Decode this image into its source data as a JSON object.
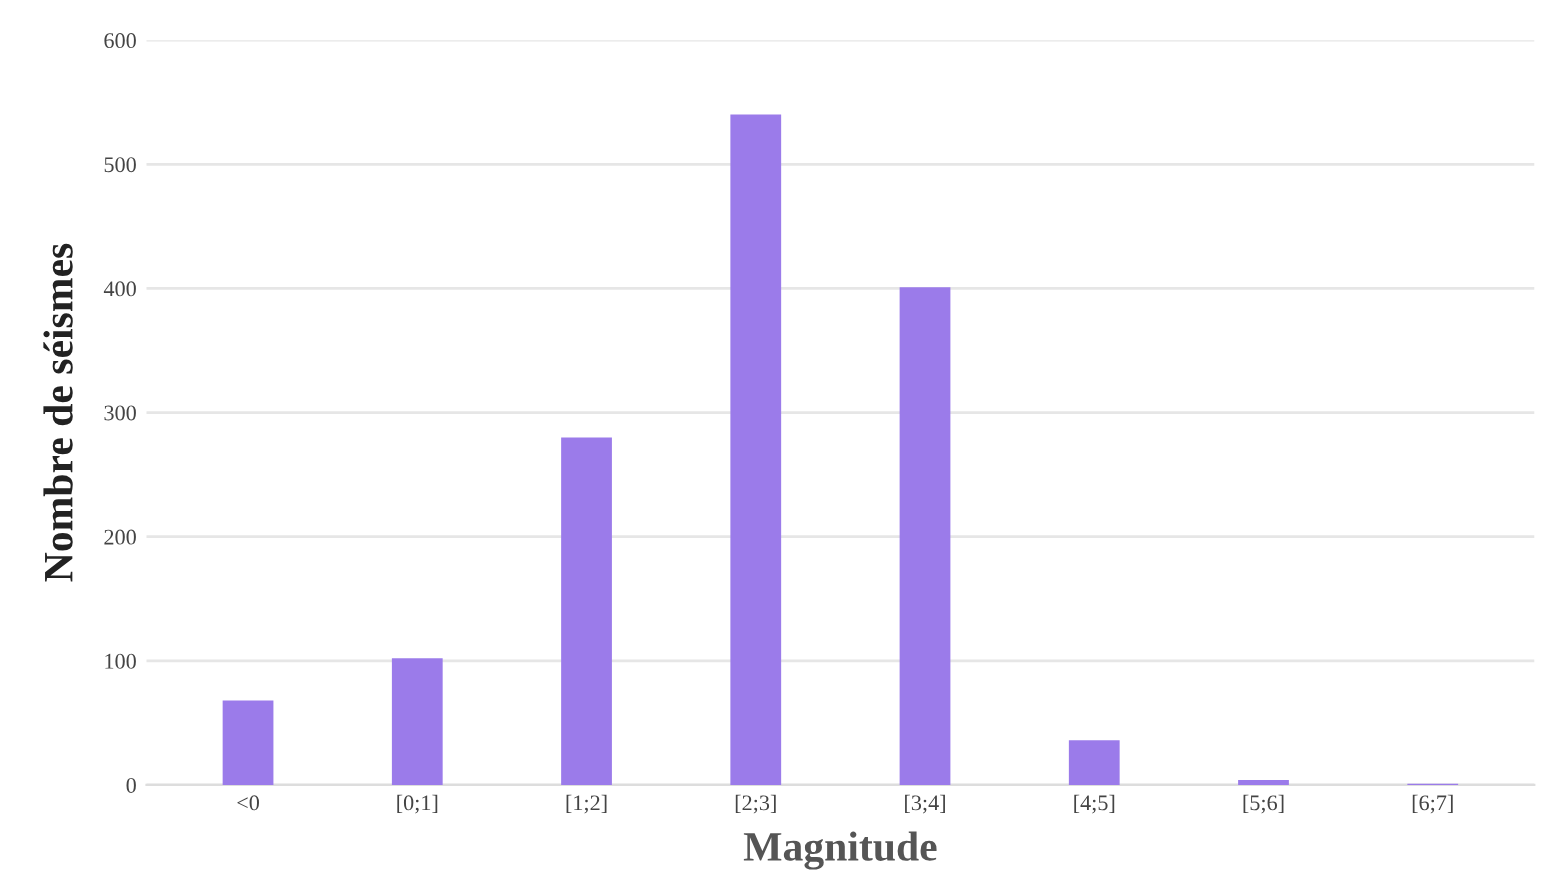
{
  "chart_data": {
    "type": "bar",
    "xlabel": "Magnitude",
    "ylabel": "Nombre de séismes",
    "categories": [
      "<0",
      "[0;1]",
      "[1;2]",
      "[2;3]",
      "[3;4]",
      "[4;5]",
      "[5;6]",
      "[6;7]"
    ],
    "values": [
      68,
      102,
      280,
      540,
      401,
      36,
      4,
      1
    ],
    "color": "#9b7bea",
    "ylim": [
      0,
      600
    ],
    "yticks": [
      0,
      100,
      200,
      300,
      400,
      500,
      600
    ],
    "grid": "y"
  }
}
